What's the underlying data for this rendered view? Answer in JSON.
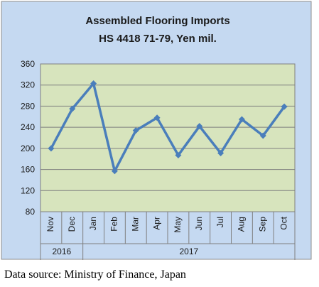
{
  "colors": {
    "outer_background": "#c5d9f1",
    "plot_background": "#d7e4bd",
    "series_line": "#4a7ebb",
    "gridline": "#7f7f7f"
  },
  "chart_data": {
    "type": "line",
    "title": "Assembled Flooring Imports",
    "subtitle": "HS 4418 71-79, Yen mil.",
    "xlabel": "",
    "ylabel": "",
    "categories": [
      "Nov",
      "Dec",
      "Jan",
      "Feb",
      "Mar",
      "Apr",
      "May",
      "Jun",
      "Jul",
      "Aug",
      "Sep",
      "Oct"
    ],
    "year_groups": [
      {
        "label": "2016",
        "start": 0,
        "end": 1
      },
      {
        "label": "2017",
        "start": 2,
        "end": 11
      }
    ],
    "series": [
      {
        "values": [
          200,
          275,
          323,
          157,
          234,
          258,
          187,
          242,
          191,
          255,
          224,
          279
        ]
      }
    ],
    "ylim": [
      80,
      360
    ],
    "yticks": [
      80,
      120,
      160,
      200,
      240,
      280,
      320,
      360
    ],
    "grid": true,
    "legend": "none",
    "markers": "diamond"
  },
  "source_note": "Data source: Ministry of Finance, Japan"
}
